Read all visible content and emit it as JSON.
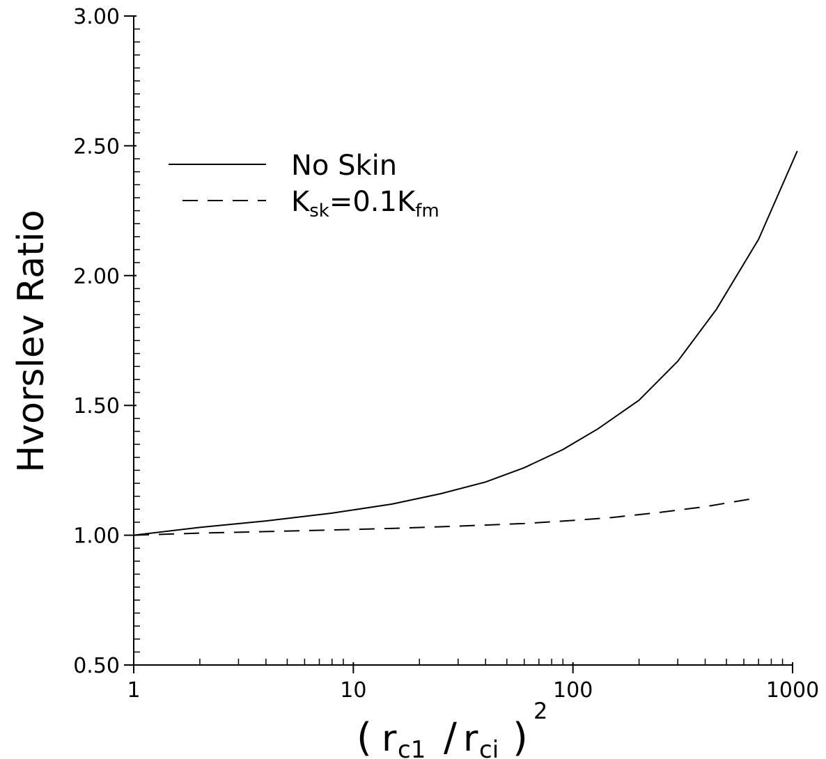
{
  "chart_data": {
    "type": "line",
    "title": "",
    "ylabel": "Hvorslev Ratio",
    "xlabel": {
      "open": "(",
      "r1": "r",
      "sub1": "c1",
      "slash": "/",
      "r2": "r",
      "sub2": "ci",
      "close": ")",
      "sup": "2"
    },
    "x_scale": "log",
    "xlim": [
      1,
      1000
    ],
    "ylim": [
      0.5,
      3.0
    ],
    "x_ticks": [
      1,
      10,
      100,
      1000
    ],
    "x_tick_labels": [
      "1",
      "10",
      "100",
      "1000"
    ],
    "y_ticks": [
      0.5,
      1.0,
      1.5,
      2.0,
      2.5,
      3.0
    ],
    "y_tick_labels": [
      "0.50",
      "1.00",
      "1.50",
      "2.00",
      "2.50",
      "3.00"
    ],
    "grid": false,
    "legend_position": "top-left",
    "series": [
      {
        "name": "No Skin",
        "style": "solid",
        "x": [
          1,
          2,
          4,
          8,
          15,
          25,
          40,
          60,
          90,
          130,
          200,
          300,
          450,
          700,
          1050
        ],
        "y": [
          1.0,
          1.03,
          1.055,
          1.085,
          1.12,
          1.16,
          1.205,
          1.26,
          1.33,
          1.41,
          1.52,
          1.67,
          1.87,
          2.14,
          2.48
        ]
      },
      {
        "name": "K_sk=0.1K_fm",
        "style": "dashed",
        "x": [
          1,
          2,
          4,
          8,
          15,
          30,
          60,
          100,
          150,
          250,
          400,
          650
        ],
        "y": [
          1.0,
          1.008,
          1.014,
          1.02,
          1.026,
          1.035,
          1.045,
          1.057,
          1.068,
          1.088,
          1.11,
          1.14
        ]
      }
    ],
    "legend": [
      {
        "style": "solid",
        "text": "No  Skin"
      },
      {
        "style": "dashed",
        "main1": "K",
        "sub1": "sk",
        "main2": "=0.1K",
        "sub2": "fm"
      }
    ]
  }
}
